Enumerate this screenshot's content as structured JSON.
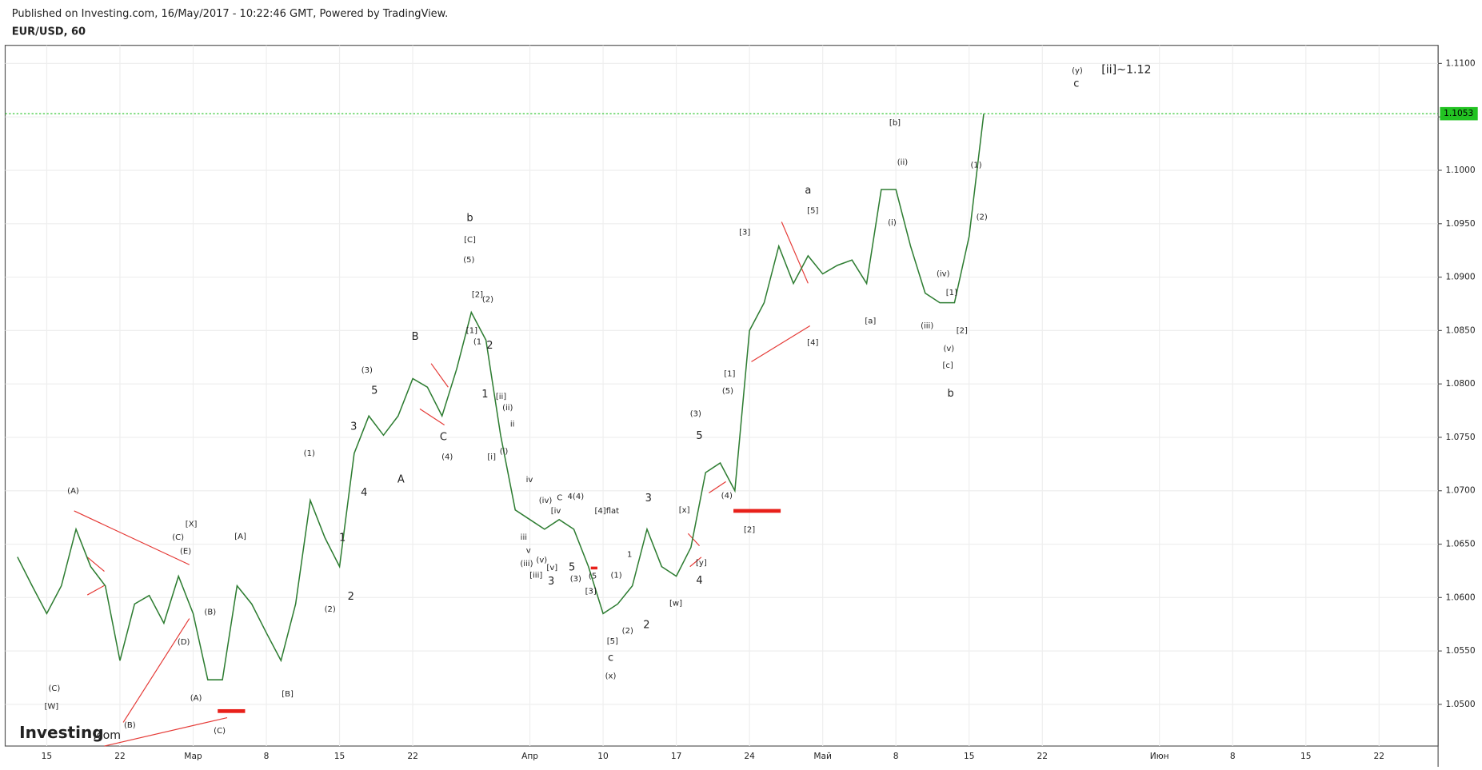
{
  "header": {
    "published": "Published on Investing.com, 16/May/2017 - 10:22:46 GMT, Powered by TradingView.",
    "symbol": "EUR/USD, 60"
  },
  "logo": {
    "brand": "Investing",
    "suffix": ".com"
  },
  "chart_data": {
    "type": "line",
    "categories": [
      null,
      null,
      "15",
      null,
      null,
      null,
      null,
      "22",
      null,
      null,
      null,
      null,
      "Мар",
      null,
      null,
      null,
      null,
      "8",
      null,
      null,
      null,
      null,
      "15",
      null,
      null,
      null,
      null,
      "22",
      null,
      null,
      null,
      null,
      null,
      null,
      null,
      "Апр",
      null,
      null,
      null,
      null,
      "10",
      null,
      null,
      null,
      null,
      "17",
      null,
      null,
      null,
      null,
      "24",
      null,
      null,
      null,
      null,
      "Май",
      null,
      null,
      null,
      null,
      "8",
      null,
      null,
      null,
      null,
      "15",
      null,
      null,
      null,
      null,
      "22",
      null,
      null,
      null,
      null,
      null,
      null,
      null,
      "Июн",
      null,
      null,
      null,
      null,
      "8",
      null,
      null,
      null,
      null,
      "15",
      null,
      null,
      null,
      null,
      "22",
      null,
      null,
      null,
      null
    ],
    "series": [
      {
        "name": "EUR/USD",
        "color": "#2e7d32",
        "values": [
          1.0638,
          1.0611,
          1.0585,
          1.0611,
          1.0664,
          1.0629,
          1.0611,
          1.0541,
          1.0594,
          1.0602,
          1.0576,
          1.062,
          1.0585,
          1.0523,
          1.0523,
          1.0611,
          1.0594,
          1.0567,
          1.0541,
          1.0594,
          1.0691,
          1.0656,
          1.0629,
          1.0735,
          1.077,
          1.0752,
          1.077,
          1.0805,
          1.0797,
          1.077,
          1.0814,
          1.0867,
          1.0841,
          1.0752,
          1.0682,
          1.0673,
          1.0664,
          1.0673,
          1.0664,
          1.0629,
          1.0585,
          1.0594,
          1.0611,
          1.0664,
          1.0629,
          1.062,
          1.0647,
          1.0717,
          1.0726,
          1.07,
          1.085,
          1.0876,
          1.0929,
          1.0894,
          1.092,
          1.0903,
          1.0911,
          1.0916,
          1.0894,
          1.0982,
          1.0982,
          1.0929,
          1.0885,
          1.0876,
          1.0876,
          1.0938,
          1.1053,
          null,
          null,
          null,
          null,
          null,
          null,
          null,
          null,
          null,
          null,
          null,
          null,
          null,
          null,
          null,
          null,
          null,
          null,
          null,
          null,
          null,
          null,
          null,
          null,
          null,
          null,
          null,
          null,
          null,
          null,
          null
        ]
      }
    ],
    "ylim": [
      1.0461,
      1.1117
    ],
    "yticks": [
      {
        "value": 1.05,
        "label": "1.0500"
      },
      {
        "value": 1.055,
        "label": "1.0550"
      },
      {
        "value": 1.06,
        "label": "1.0600"
      },
      {
        "value": 1.065,
        "label": "1.0650"
      },
      {
        "value": 1.07,
        "label": "1.0700"
      },
      {
        "value": 1.075,
        "label": "1.0750"
      },
      {
        "value": 1.08,
        "label": "1.0800"
      },
      {
        "value": 1.085,
        "label": "1.0850"
      },
      {
        "value": 1.09,
        "label": "1.0900"
      },
      {
        "value": 1.095,
        "label": "1.0950"
      },
      {
        "value": 1.1,
        "label": "1.1000"
      },
      {
        "value": 1.105,
        "label": "1.1050"
      },
      {
        "value": 1.11,
        "label": "1.1100"
      }
    ],
    "last_price": 1.1053,
    "last_price_color": "#22c322",
    "grid": true,
    "annotations": [
      "(A)",
      "(C)",
      "[W]",
      "(B)",
      "(C)",
      "[X]",
      "(E)",
      "(D)",
      "(B)",
      "(A)",
      "(C)",
      "[A]",
      "[B]",
      "(2)",
      "2",
      "1",
      "(1)",
      "3",
      "4",
      "5",
      "(3)",
      "A",
      "B",
      "C",
      "(4)",
      "b",
      "[C]",
      "(5)",
      "[2]",
      "(2)",
      "[1]",
      "(1",
      "2",
      "1",
      "[ii]",
      "(ii)",
      "ii",
      "[i]",
      "(i)",
      "iv",
      "iii",
      "v",
      "(iii)",
      "[iii]",
      "(v)",
      "[v]",
      "3",
      "(iv)",
      "[iv",
      "C",
      "4(4)",
      "[4]flat",
      "5",
      "(3)",
      "(5",
      "[3]",
      "(1)",
      "1",
      "(2)",
      "[5]",
      "c",
      "(x)",
      "2",
      "3",
      "[x]",
      "[y]",
      "4",
      "[w]",
      "5",
      "(3)",
      "(5)",
      "[1]",
      "(4)",
      "[2]",
      "[3]",
      "a",
      "[5]",
      "[4]",
      "[a]",
      "[b]",
      "(ii)",
      "(i)",
      "(iii)",
      "(iv)",
      "[1]",
      "[2]",
      "(v)",
      "[c]",
      "b",
      "(1)",
      "(2)",
      "(y)",
      "c",
      "[ii]~1.12"
    ]
  }
}
